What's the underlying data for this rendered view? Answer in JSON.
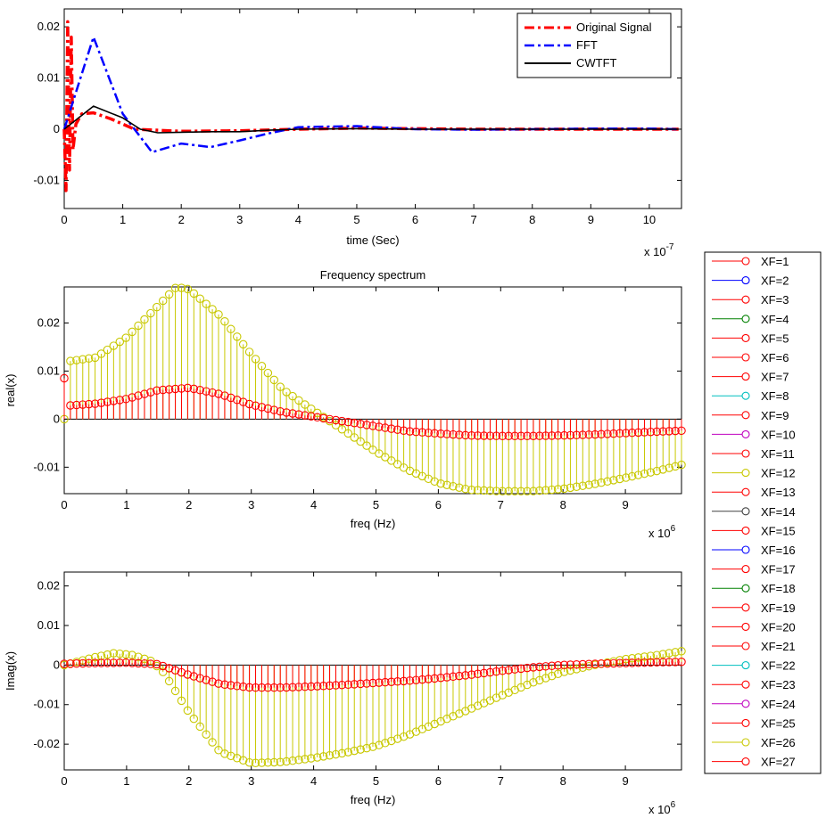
{
  "chart_data": [
    {
      "type": "line",
      "title": "",
      "xlabel": "time (Sec)",
      "ylabel": "",
      "x_multiplier": "x 10",
      "x_exponent": "-7",
      "xlim": [
        0,
        10.55
      ],
      "ylim": [
        -0.0155,
        0.0235
      ],
      "xticks": [
        "0",
        "1",
        "2",
        "3",
        "4",
        "5",
        "6",
        "7",
        "8",
        "9",
        "10"
      ],
      "yticks": [
        "-0.01",
        "0",
        "0.01",
        "0.02"
      ],
      "legend_position": "top-right",
      "series": [
        {
          "name": "Original Signal",
          "color": "#ff0000",
          "style": "dash-dot-thick",
          "x": [
            0,
            0.03,
            0.06,
            0.09,
            0.12,
            0.15,
            0.2,
            0.3,
            0.5,
            0.8,
            1.2,
            2,
            3,
            4,
            5,
            6,
            7,
            8,
            9,
            10,
            10.5
          ],
          "y": [
            0,
            -0.012,
            0.021,
            -0.008,
            0.018,
            -0.004,
            0.001,
            0.003,
            0.0032,
            0.002,
            0.0,
            -0.0004,
            -0.0003,
            0.0,
            0.0002,
            0.0001,
            0.0,
            0.0,
            0.0,
            0.0,
            0.0
          ]
        },
        {
          "name": "FFT",
          "color": "#0000ff",
          "style": "dash-dot",
          "x": [
            0,
            0.5,
            1.0,
            1.5,
            2.0,
            2.5,
            3.0,
            3.5,
            4.0,
            4.5,
            5.0,
            5.5,
            6.0,
            7.0,
            8.0,
            9.0,
            10.0,
            10.5
          ],
          "y": [
            0,
            0.018,
            0.003,
            -0.0045,
            -0.0028,
            -0.0035,
            -0.0022,
            -0.0008,
            0.0004,
            0.0005,
            0.0006,
            0.0003,
            0.0,
            -0.0001,
            0.0,
            0.0001,
            0.0001,
            0.0
          ]
        },
        {
          "name": "CWTFT",
          "color": "#000000",
          "style": "solid",
          "x": [
            0,
            0.5,
            1.0,
            1.3,
            1.6,
            2.0,
            2.5,
            3.0,
            3.5,
            4.0,
            5.0,
            6.0,
            7.0,
            8.0,
            9.0,
            10.0,
            10.5
          ],
          "y": [
            0,
            0.0045,
            0.0022,
            0.0,
            -0.0007,
            -0.0006,
            -0.0005,
            -0.0005,
            -0.0002,
            0.0,
            0.0001,
            0.0,
            0.0,
            0.0,
            0.0,
            0.0,
            0.0
          ]
        }
      ]
    },
    {
      "type": "stem",
      "title": "Frequency spectrum",
      "xlabel": "freq (Hz)",
      "ylabel": "real(x)",
      "x_multiplier": "x 10",
      "x_exponent": "6",
      "xlim": [
        0,
        9.9
      ],
      "ylim": [
        -0.0155,
        0.0275
      ],
      "xticks": [
        "0",
        "1",
        "2",
        "3",
        "4",
        "5",
        "6",
        "7",
        "8",
        "9"
      ],
      "yticks": [
        "-0.01",
        "0",
        "0.01",
        "0.02"
      ],
      "series": [
        {
          "name": "XF=26",
          "color": "#c8c800",
          "x_step": 0.099,
          "control_x": [
            0,
            0.05,
            0.5,
            1.0,
            1.5,
            1.8,
            2.0,
            2.5,
            3.0,
            3.5,
            4.0,
            4.5,
            5.0,
            5.5,
            6.0,
            6.5,
            7.0,
            7.5,
            8.0,
            8.5,
            9.0,
            9.5,
            9.9
          ],
          "control_y": [
            0.0,
            0.012,
            0.0128,
            0.017,
            0.0235,
            0.0275,
            0.027,
            0.0215,
            0.0135,
            0.0062,
            0.0018,
            -0.0025,
            -0.0068,
            -0.0105,
            -0.0133,
            -0.0147,
            -0.015,
            -0.015,
            -0.0145,
            -0.0135,
            -0.0122,
            -0.0108,
            -0.0095
          ]
        },
        {
          "name": "XF=27",
          "color": "#ff0000",
          "x_step": 0.099,
          "control_x": [
            0,
            0.05,
            0.5,
            1.0,
            1.5,
            2.0,
            2.5,
            3.0,
            3.5,
            4.0,
            4.5,
            5.0,
            5.5,
            6.0,
            6.5,
            7.0,
            7.5,
            8.0,
            8.5,
            9.0,
            9.5,
            9.9
          ],
          "control_y": [
            0.0085,
            0.0028,
            0.0032,
            0.0042,
            0.006,
            0.0065,
            0.0052,
            0.003,
            0.0015,
            0.0005,
            -0.0005,
            -0.0015,
            -0.0025,
            -0.003,
            -0.0034,
            -0.0035,
            -0.0035,
            -0.0034,
            -0.0032,
            -0.0029,
            -0.0026,
            -0.0024
          ]
        }
      ]
    },
    {
      "type": "stem",
      "title": "",
      "xlabel": "freq (Hz)",
      "ylabel": "Imag(x)",
      "x_multiplier": "x 10",
      "x_exponent": "6",
      "xlim": [
        0,
        9.9
      ],
      "ylim": [
        -0.0265,
        0.0235
      ],
      "xticks": [
        "0",
        "1",
        "2",
        "3",
        "4",
        "5",
        "6",
        "7",
        "8",
        "9"
      ],
      "yticks": [
        "-0.02",
        "-0.01",
        "0",
        "0.01",
        "0.02"
      ],
      "series": [
        {
          "name": "XF=26",
          "color": "#c8c800",
          "x_step": 0.099,
          "control_x": [
            0,
            0.5,
            0.8,
            1.1,
            1.4,
            1.6,
            2.0,
            2.5,
            3.0,
            3.5,
            4.0,
            4.5,
            5.0,
            5.5,
            6.0,
            6.5,
            7.0,
            7.5,
            8.0,
            8.5,
            9.0,
            9.5,
            9.9
          ],
          "control_y": [
            0.0,
            0.002,
            0.003,
            0.0025,
            0.001,
            -0.002,
            -0.012,
            -0.022,
            -0.0248,
            -0.0245,
            -0.0235,
            -0.0222,
            -0.0205,
            -0.0178,
            -0.0145,
            -0.0112,
            -0.0078,
            -0.0045,
            -0.0018,
            0.0,
            0.0015,
            0.0025,
            0.0035
          ]
        },
        {
          "name": "XF=27",
          "color": "#ff0000",
          "x_step": 0.099,
          "control_x": [
            0,
            0.5,
            1.0,
            1.5,
            2.0,
            2.5,
            3.0,
            3.5,
            4.0,
            4.5,
            5.0,
            5.5,
            6.0,
            6.5,
            7.0,
            7.5,
            8.0,
            8.5,
            9.0,
            9.5,
            9.9
          ],
          "control_y": [
            0.0003,
            0.0005,
            0.0006,
            0.0002,
            -0.0025,
            -0.0048,
            -0.0057,
            -0.0057,
            -0.0054,
            -0.005,
            -0.0045,
            -0.004,
            -0.0033,
            -0.0025,
            -0.0015,
            -0.0006,
            0.0,
            0.0003,
            0.0005,
            0.0007,
            0.0008
          ]
        }
      ]
    }
  ],
  "legend_xf": [
    {
      "label": "XF=1",
      "color": "#ff0000"
    },
    {
      "label": "XF=2",
      "color": "#0000ff"
    },
    {
      "label": "XF=3",
      "color": "#ff0000"
    },
    {
      "label": "XF=4",
      "color": "#008000"
    },
    {
      "label": "XF=5",
      "color": "#ff0000"
    },
    {
      "label": "XF=6",
      "color": "#ff0000"
    },
    {
      "label": "XF=7",
      "color": "#ff0000"
    },
    {
      "label": "XF=8",
      "color": "#00bfbf"
    },
    {
      "label": "XF=9",
      "color": "#ff0000"
    },
    {
      "label": "XF=10",
      "color": "#bf00bf"
    },
    {
      "label": "XF=11",
      "color": "#ff0000"
    },
    {
      "label": "XF=12",
      "color": "#c8c800"
    },
    {
      "label": "XF=13",
      "color": "#ff0000"
    },
    {
      "label": "XF=14",
      "color": "#404040"
    },
    {
      "label": "XF=15",
      "color": "#ff0000"
    },
    {
      "label": "XF=16",
      "color": "#0000ff"
    },
    {
      "label": "XF=17",
      "color": "#ff0000"
    },
    {
      "label": "XF=18",
      "color": "#008000"
    },
    {
      "label": "XF=19",
      "color": "#ff0000"
    },
    {
      "label": "XF=20",
      "color": "#ff0000"
    },
    {
      "label": "XF=21",
      "color": "#ff0000"
    },
    {
      "label": "XF=22",
      "color": "#00bfbf"
    },
    {
      "label": "XF=23",
      "color": "#ff0000"
    },
    {
      "label": "XF=24",
      "color": "#bf00bf"
    },
    {
      "label": "XF=25",
      "color": "#ff0000"
    },
    {
      "label": "XF=26",
      "color": "#c8c800"
    },
    {
      "label": "XF=27",
      "color": "#ff0000"
    }
  ]
}
